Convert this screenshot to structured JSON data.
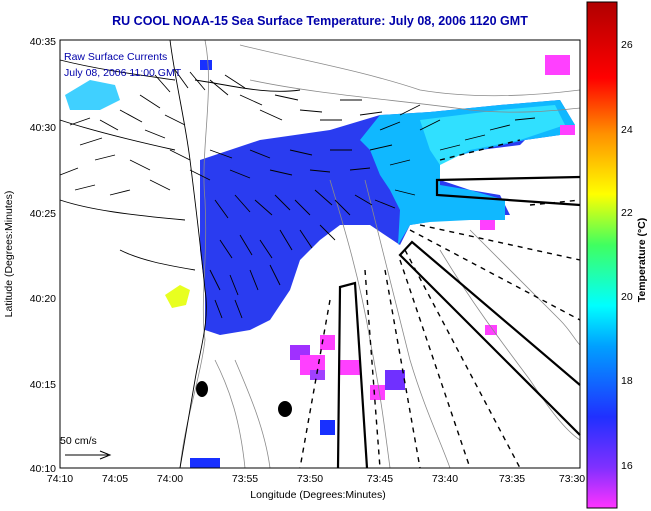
{
  "title": "RU COOL  NOAA-15  Sea Surface Temperature:  July 08, 2006 1120 GMT",
  "overlay": {
    "line1": "Raw Surface Currents",
    "line2": "July 08, 2006 11:00 GMT"
  },
  "axes": {
    "xlabel": "Longitude (Degrees:Minutes)",
    "ylabel": "Latitude (Degrees:Minutes)",
    "xticks": [
      "74:10",
      "74:05",
      "74:00",
      "73:55",
      "73:50",
      "73:45",
      "73:40",
      "73:35",
      "73:30"
    ],
    "yticks": [
      "40:35",
      "40:30",
      "40:25",
      "40:20",
      "40:15",
      "40:10"
    ]
  },
  "scale_arrow": {
    "label": "50 cm/s"
  },
  "colorbar": {
    "label": "Temperature (°C)",
    "ticks": [
      "26",
      "24",
      "22",
      "20",
      "18",
      "16"
    ],
    "min": 15.0,
    "max": 27.3,
    "colors": [
      "#ff33ff",
      "#8030ff",
      "#2030ff",
      "#00a0ff",
      "#00ffff",
      "#40ff60",
      "#ffff00",
      "#ff9000",
      "#ff0000",
      "#b00000"
    ]
  },
  "chart_data": {
    "type": "heatmap",
    "title": "RU COOL  NOAA-15  Sea Surface Temperature:  July 08, 2006 1120 GMT",
    "xlabel": "Longitude (Degrees:Minutes)",
    "ylabel": "Latitude (Degrees:Minutes)",
    "xlim": [
      "74:10",
      "73:30"
    ],
    "ylim": [
      "40:10",
      "40:35"
    ],
    "colorbar_range": [
      15.0,
      27.3
    ],
    "colorbar_label": "Temperature (°C)"
  }
}
